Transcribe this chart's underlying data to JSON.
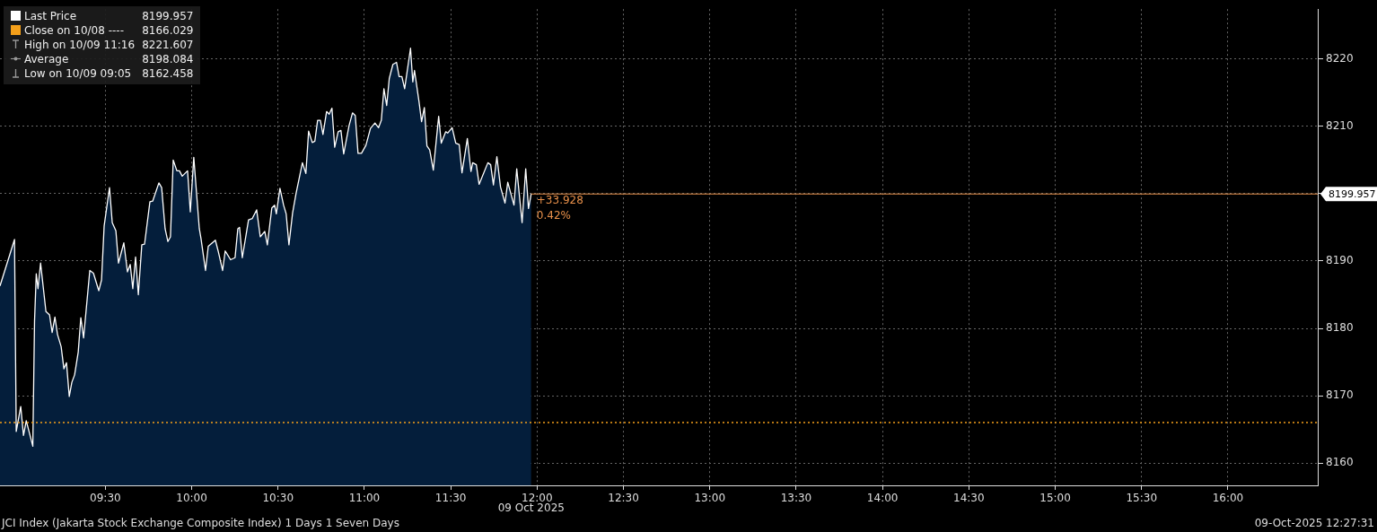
{
  "chart_data": {
    "type": "area",
    "x": [
      8.89,
      8.974,
      8.984,
      9.01,
      9.026,
      9.042,
      9.08,
      9.09,
      9.1,
      9.11,
      9.125,
      9.156,
      9.177,
      9.192,
      9.208,
      9.223,
      9.244,
      9.26,
      9.275,
      9.291,
      9.306,
      9.322,
      9.343,
      9.358,
      9.374,
      9.41,
      9.431,
      9.462,
      9.478,
      9.493,
      9.524,
      9.54,
      9.561,
      9.576,
      9.607,
      9.628,
      9.644,
      9.659,
      9.675,
      9.691,
      9.711,
      9.727,
      9.758,
      9.774,
      9.81,
      9.826,
      9.846,
      9.862,
      9.877,
      9.893,
      9.914,
      9.929,
      9.945,
      9.976,
      9.992,
      10.012,
      10.044,
      10.054,
      10.08,
      10.096,
      10.137,
      10.153,
      10.179,
      10.194,
      10.225,
      10.251,
      10.267,
      10.277,
      10.293,
      10.329,
      10.35,
      10.376,
      10.397,
      10.423,
      10.438,
      10.464,
      10.48,
      10.49,
      10.511,
      10.532,
      10.547,
      10.563,
      10.584,
      10.604,
      10.641,
      10.661,
      10.677,
      10.698,
      10.713,
      10.729,
      10.745,
      10.76,
      10.781,
      10.796,
      10.812,
      10.828,
      10.848,
      10.864,
      10.88,
      10.911,
      10.931,
      10.947,
      10.963,
      10.983,
      11.009,
      11.035,
      11.061,
      11.082,
      11.098,
      11.113,
      11.129,
      11.144,
      11.165,
      11.186,
      11.201,
      11.217,
      11.233,
      11.267,
      11.28,
      11.29,
      11.316,
      11.331,
      11.347,
      11.362,
      11.378,
      11.399,
      11.43,
      11.445,
      11.471,
      11.482,
      11.508,
      11.529,
      11.549,
      11.565,
      11.596,
      11.617,
      11.627,
      11.648,
      11.664,
      11.715,
      11.731,
      11.747,
      11.767,
      11.788,
      11.814,
      11.83,
      11.866,
      11.882,
      11.913,
      11.934,
      11.95,
      11.966
    ],
    "series": [
      {
        "name": "Last Price",
        "color": "#ffffff",
        "values": [
          8186.3,
          8193.2,
          8164.7,
          8168.4,
          8164.1,
          8166.3,
          8162.5,
          8181.1,
          8188.1,
          8185.9,
          8189.7,
          8182.5,
          8182.0,
          8179.4,
          8181.7,
          8179.1,
          8177.3,
          8174.0,
          8174.9,
          8169.9,
          8172.0,
          8173.1,
          8176.5,
          8181.6,
          8178.6,
          8188.6,
          8188.2,
          8185.6,
          8187.2,
          8195.2,
          8200.9,
          8195.7,
          8194.5,
          8189.7,
          8192.7,
          8188.4,
          8189.5,
          8185.9,
          8190.6,
          8185.0,
          8192.4,
          8192.5,
          8198.8,
          8198.9,
          8201.6,
          8200.9,
          8194.8,
          8192.9,
          8193.6,
          8205.0,
          8203.4,
          8203.4,
          8202.6,
          8203.4,
          8197.3,
          8205.4,
          8194.8,
          8193.3,
          8188.6,
          8192.2,
          8193.1,
          8191.5,
          8188.6,
          8191.5,
          8190.2,
          8190.5,
          8194.8,
          8195.0,
          8190.5,
          8196.1,
          8196.3,
          8197.6,
          8193.6,
          8194.4,
          8192.4,
          8197.9,
          8198.3,
          8197.0,
          8200.8,
          8198.3,
          8197.0,
          8192.4,
          8197.1,
          8200.0,
          8204.6,
          8203.0,
          8209.3,
          8207.6,
          8207.8,
          8210.9,
          8210.9,
          8208.8,
          8212.2,
          8211.8,
          8212.7,
          8206.9,
          8209.2,
          8209.4,
          8205.9,
          8210.1,
          8212.0,
          8211.6,
          8206.0,
          8206.0,
          8207.2,
          8209.7,
          8210.5,
          8209.8,
          8210.9,
          8215.6,
          8213.1,
          8217.1,
          8219.2,
          8219.5,
          8217.4,
          8217.4,
          8215.6,
          8221.6,
          8216.6,
          8218.3,
          8213.7,
          8210.7,
          8212.8,
          8207.1,
          8206.5,
          8203.5,
          8211.5,
          8207.5,
          8209.2,
          8209.0,
          8209.8,
          8207.5,
          8207.3,
          8203.1,
          8208.2,
          8203.3,
          8204.6,
          8204.3,
          8201.4,
          8204.6,
          8204.3,
          8201.3,
          8205.5,
          8201.0,
          8198.6,
          8201.7,
          8198.3,
          8203.7,
          8195.7,
          8203.7,
          8197.8,
          8200.0
        ]
      }
    ],
    "xlim": [
      8.89,
      16.52
    ],
    "xticks": [
      {
        "value": 9.5,
        "label": "09:30"
      },
      {
        "value": 10,
        "label": "10:00"
      },
      {
        "value": 10.5,
        "label": "10:30"
      },
      {
        "value": 11,
        "label": "11:00"
      },
      {
        "value": 11.5,
        "label": "11:30"
      },
      {
        "value": 12,
        "label": "12:00"
      },
      {
        "value": 12.5,
        "label": "12:30"
      },
      {
        "value": 13,
        "label": "13:00"
      },
      {
        "value": 13.5,
        "label": "13:30"
      },
      {
        "value": 14,
        "label": "14:00"
      },
      {
        "value": 14.5,
        "label": "14:30"
      },
      {
        "value": 15,
        "label": "15:00"
      },
      {
        "value": 15.5,
        "label": "15:30"
      },
      {
        "value": 16,
        "label": "16:00"
      }
    ],
    "ylim": [
      8156.7,
      8227.4
    ],
    "yticks": [
      8160,
      8170,
      8180,
      8190,
      {
        "value": 8200,
        "label": null
      },
      8210,
      8220
    ],
    "grid": true,
    "legend": "top left",
    "marker": "none",
    "line_style": "solid",
    "ref_lines": [
      {
        "axis": "y",
        "value": 8166.029,
        "label": "Close on 10/08 ----",
        "color": "#f5a01a",
        "line_style": "dotted"
      },
      {
        "axis": "y",
        "value": 8199.957,
        "label": "8199.957",
        "color": "#e8904a",
        "line_style": "solid"
      }
    ],
    "annotations": [
      "+33.928",
      "0.42%",
      "High on 10/09 11:16",
      "8221.607",
      "Average",
      "8198.084",
      "Low on 10/09 09:05",
      "8162.458",
      "09 Oct 2025",
      "JCI Index (Jakarta Stock Exchange Composite Index) 1 Days 1 Seven Days",
      "09-Oct-2025 12:27:31",
      "8166.029"
    ]
  }
}
